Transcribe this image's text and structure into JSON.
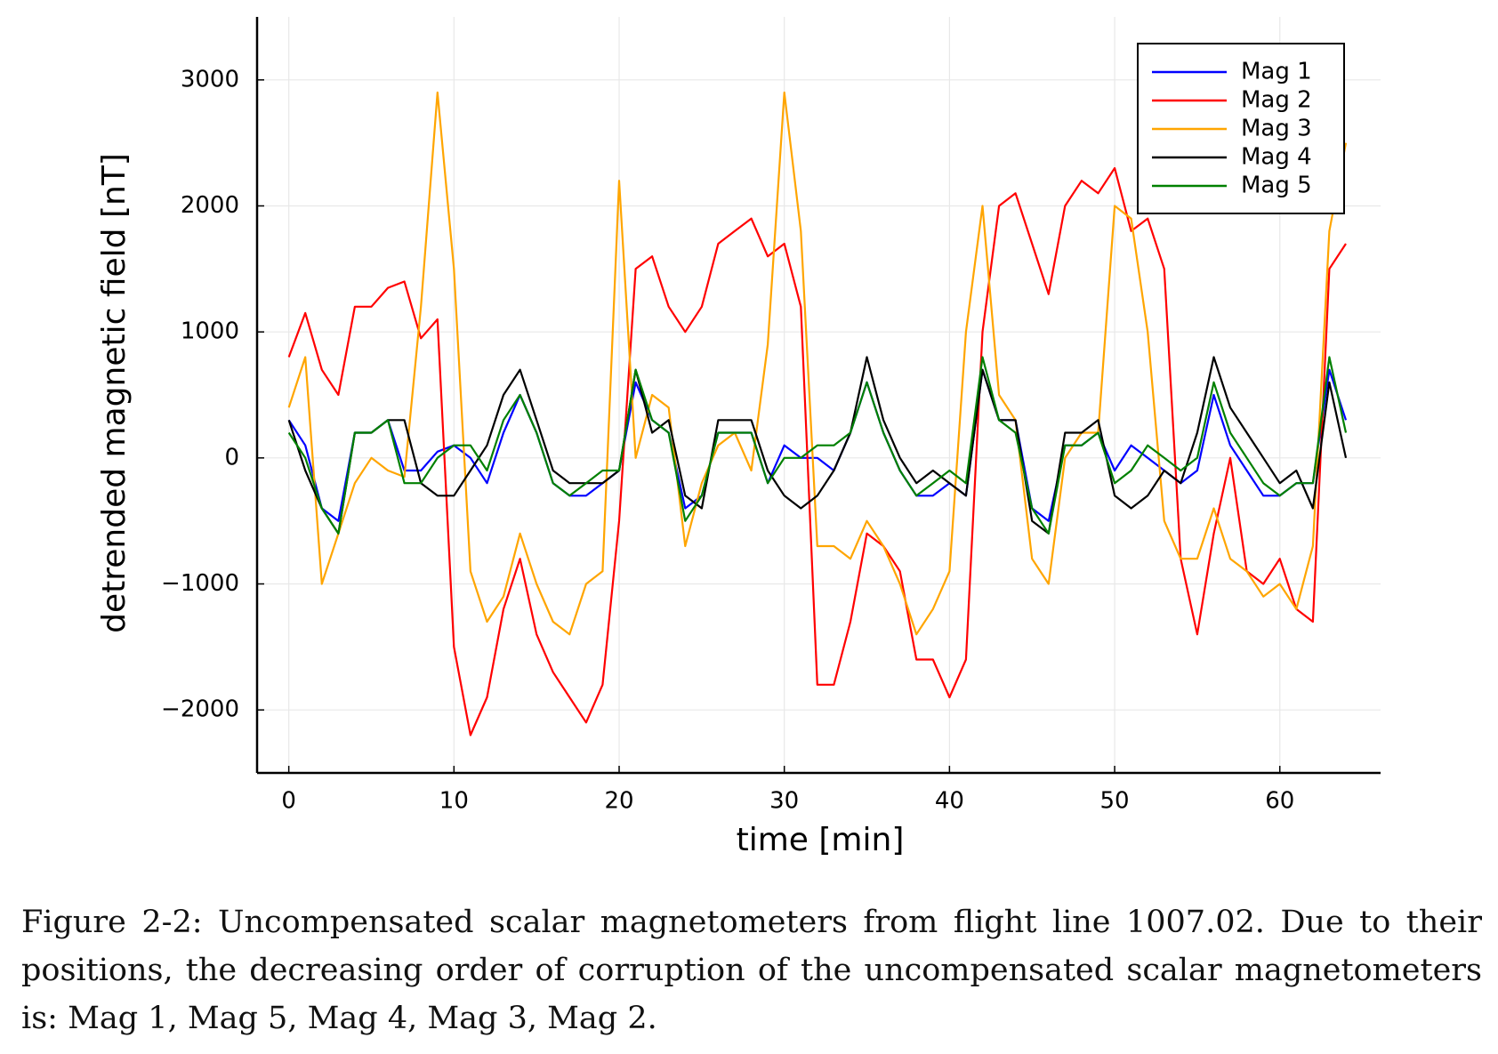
{
  "chart_data": {
    "type": "line",
    "xlabel": "time [min]",
    "ylabel": "detrended magnetic field [nT]",
    "x": [
      0,
      1,
      2,
      3,
      4,
      5,
      6,
      7,
      8,
      9,
      10,
      11,
      12,
      13,
      14,
      15,
      16,
      17,
      18,
      19,
      20,
      21,
      22,
      23,
      24,
      25,
      26,
      27,
      28,
      29,
      30,
      31,
      32,
      33,
      34,
      35,
      36,
      37,
      38,
      39,
      40,
      41,
      42,
      43,
      44,
      45,
      46,
      47,
      48,
      49,
      50,
      51,
      52,
      53,
      54,
      55,
      56,
      57,
      58,
      59,
      60,
      61,
      62,
      63,
      64
    ],
    "series": [
      {
        "name": "Mag 1",
        "color": "#0000ff",
        "values": [
          300,
          100,
          -400,
          -500,
          200,
          200,
          300,
          -100,
          -100,
          50,
          100,
          0,
          -200,
          200,
          500,
          200,
          -200,
          -300,
          -300,
          -200,
          -100,
          600,
          300,
          200,
          -400,
          -300,
          200,
          200,
          200,
          -200,
          100,
          0,
          0,
          -100,
          200,
          600,
          200,
          -100,
          -300,
          -300,
          -200,
          -300,
          700,
          300,
          300,
          -400,
          -500,
          100,
          100,
          200,
          -100,
          100,
          0,
          -100,
          -200,
          -100,
          500,
          100,
          -100,
          -300,
          -300,
          -200,
          -200,
          700,
          300
        ]
      },
      {
        "name": "Mag 2",
        "color": "#ff0000",
        "values": [
          800,
          1150,
          700,
          500,
          1200,
          1200,
          1350,
          1400,
          950,
          1100,
          -1500,
          -2200,
          -1900,
          -1200,
          -800,
          -1400,
          -1700,
          -1900,
          -2100,
          -1800,
          -500,
          1500,
          1600,
          1200,
          1000,
          1200,
          1700,
          1800,
          1900,
          1600,
          1700,
          1200,
          -1800,
          -1800,
          -1300,
          -600,
          -700,
          -900,
          -1600,
          -1600,
          -1900,
          -1600,
          1000,
          2000,
          2100,
          1700,
          1300,
          2000,
          2200,
          2100,
          2300,
          1800,
          1900,
          1500,
          -800,
          -1400,
          -600,
          0,
          -900,
          -1000,
          -800,
          -1200,
          -1300,
          1500,
          1700
        ]
      },
      {
        "name": "Mag 3",
        "color": "#ffa500",
        "values": [
          400,
          800,
          -1000,
          -600,
          -200,
          0,
          -100,
          -150,
          1200,
          2900,
          1500,
          -900,
          -1300,
          -1100,
          -600,
          -1000,
          -1300,
          -1400,
          -1000,
          -900,
          2200,
          0,
          500,
          400,
          -700,
          -200,
          100,
          200,
          -100,
          900,
          2900,
          1800,
          -700,
          -700,
          -800,
          -500,
          -700,
          -1000,
          -1400,
          -1200,
          -900,
          1000,
          2000,
          500,
          300,
          -800,
          -1000,
          0,
          200,
          200,
          2000,
          1900,
          1000,
          -500,
          -800,
          -800,
          -400,
          -800,
          -900,
          -1100,
          -1000,
          -1200,
          -700,
          1800,
          2500
        ]
      },
      {
        "name": "Mag 4",
        "color": "#000000",
        "values": [
          300,
          -100,
          -400,
          -600,
          200,
          200,
          300,
          300,
          -200,
          -300,
          -300,
          -100,
          100,
          500,
          700,
          300,
          -100,
          -200,
          -200,
          -200,
          -100,
          700,
          200,
          300,
          -300,
          -400,
          300,
          300,
          300,
          -100,
          -300,
          -400,
          -300,
          -100,
          200,
          800,
          300,
          0,
          -200,
          -100,
          -200,
          -300,
          700,
          300,
          300,
          -500,
          -600,
          200,
          200,
          300,
          -300,
          -400,
          -300,
          -100,
          -200,
          200,
          800,
          400,
          200,
          0,
          -200,
          -100,
          -400,
          600,
          0
        ]
      },
      {
        "name": "Mag 5",
        "color": "#008000",
        "values": [
          200,
          0,
          -400,
          -600,
          200,
          200,
          300,
          -200,
          -200,
          0,
          100,
          100,
          -100,
          300,
          500,
          200,
          -200,
          -300,
          -200,
          -100,
          -100,
          700,
          300,
          200,
          -500,
          -300,
          200,
          200,
          200,
          -200,
          0,
          0,
          100,
          100,
          200,
          600,
          200,
          -100,
          -300,
          -200,
          -100,
          -200,
          800,
          300,
          200,
          -400,
          -600,
          100,
          100,
          200,
          -200,
          -100,
          100,
          0,
          -100,
          0,
          600,
          200,
          0,
          -200,
          -300,
          -200,
          -200,
          800,
          200
        ]
      }
    ],
    "xlim": [
      -1.92,
      66.1
    ],
    "ylim": [
      -2500,
      3500
    ],
    "xticks": [
      0,
      10,
      20,
      30,
      40,
      50,
      60
    ],
    "yticks": [
      {
        "value": -2000,
        "label": "−2000"
      },
      {
        "value": -1000,
        "label": "−1000"
      },
      0,
      1000,
      2000,
      3000
    ],
    "grid": true,
    "legend": "upper right"
  },
  "caption": "Figure 2-2: Uncompensated scalar magnetometers from flight line 1007.02. Due to their positions, the decreasing order of corruption of the uncompensated scalar magnetometers is: Mag 1, Mag 5, Mag 4, Mag 3, Mag 2."
}
